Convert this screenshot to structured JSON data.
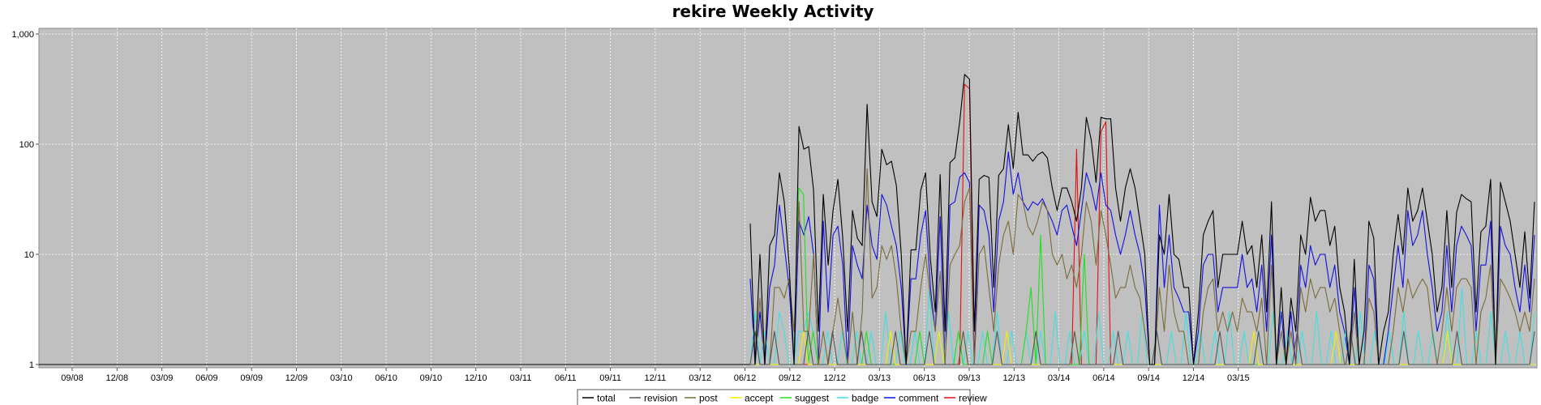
{
  "chart_data": {
    "type": "line",
    "title": "rekire Weekly Activity",
    "xlabel": "",
    "ylabel": "",
    "y_scale": "log",
    "ylim": [
      1,
      1000
    ],
    "y_ticks": [
      {
        "value": 1,
        "label": "1"
      },
      {
        "value": 10,
        "label": "10"
      },
      {
        "value": 100,
        "label": "100"
      },
      {
        "value": 1000,
        "label": "1,000"
      }
    ],
    "x_ticks": [
      "09/08",
      "12/08",
      "03/09",
      "06/09",
      "09/09",
      "12/09",
      "03/10",
      "06/10",
      "09/10",
      "12/10",
      "03/11",
      "06/11",
      "09/11",
      "12/11",
      "03/12",
      "06/12",
      "09/12",
      "12/12",
      "03/13",
      "06/13",
      "09/13",
      "12/13",
      "03/14",
      "06/14",
      "09/14",
      "12/14",
      "03/15"
    ],
    "grid": true,
    "legend_position": "bottom",
    "plot_background": "#c0c0c0",
    "series": [
      {
        "name": "total",
        "color": "#000000",
        "values": [
          19,
          1,
          10,
          1,
          12,
          15,
          55,
          30,
          8,
          1,
          145,
          90,
          95,
          38,
          2,
          35,
          8,
          25,
          48,
          14,
          2,
          25,
          14,
          12,
          230,
          30,
          22,
          90,
          65,
          70,
          42,
          10,
          1,
          11,
          11,
          38,
          55,
          9,
          3,
          53,
          2,
          68,
          75,
          160,
          430,
          390,
          2,
          48,
          52,
          50,
          5,
          52,
          60,
          150,
          60,
          195,
          80,
          80,
          70,
          80,
          85,
          75,
          40,
          25,
          40,
          40,
          30,
          20,
          40,
          175,
          110,
          45,
          175,
          170,
          170,
          40,
          20,
          40,
          60,
          40,
          20,
          10,
          1,
          1,
          15,
          10,
          35,
          10,
          9,
          5,
          5,
          1,
          3,
          15,
          20,
          25,
          5,
          10,
          10,
          10,
          10,
          20,
          10,
          12,
          5,
          15,
          3,
          30,
          1,
          5,
          1,
          4,
          2,
          15,
          10,
          33,
          20,
          25,
          25,
          12,
          18,
          5,
          3,
          1,
          9,
          1,
          2,
          20,
          14,
          1,
          2,
          3,
          10,
          23,
          10,
          40,
          20,
          25,
          40,
          20,
          10,
          3,
          5,
          25,
          5,
          24,
          35,
          32,
          30,
          3,
          16,
          18,
          48,
          1,
          45,
          30,
          20,
          10,
          5,
          16,
          4,
          30
        ]
      },
      {
        "name": "revision",
        "color": "#555555",
        "values": [
          1,
          2,
          1,
          1,
          1,
          2,
          1,
          1,
          1,
          1,
          1,
          1,
          2,
          1,
          1,
          1,
          1,
          2,
          1,
          1,
          1,
          1,
          1,
          2,
          1,
          1,
          1,
          1,
          1,
          1,
          2,
          1,
          1,
          1,
          1,
          1,
          1,
          2,
          1,
          1,
          1,
          1,
          1,
          1,
          2,
          1,
          1,
          1,
          1,
          1,
          1,
          2,
          1,
          1,
          1,
          1,
          1,
          1,
          1,
          2,
          1,
          1,
          1,
          1,
          1,
          1,
          1,
          2,
          1,
          1,
          1,
          1,
          1,
          1,
          1,
          1,
          2,
          1,
          1,
          1,
          1,
          1,
          1,
          1,
          2,
          1,
          1,
          1,
          1,
          1,
          1,
          1,
          1,
          1,
          1,
          1,
          1,
          2,
          1,
          1,
          1,
          1,
          1,
          1,
          1,
          2,
          1,
          1,
          1,
          1,
          1,
          1,
          1,
          2,
          1,
          1,
          1,
          1,
          1,
          1,
          1,
          1,
          1,
          1,
          2,
          1,
          1,
          1,
          1,
          1,
          1,
          1,
          1,
          1,
          1,
          2,
          1,
          1,
          1,
          1,
          1,
          1,
          1,
          1,
          1,
          1,
          2,
          1,
          1,
          1,
          1,
          1,
          1,
          1,
          1,
          1,
          1,
          1,
          1,
          1,
          1,
          1,
          2
        ]
      },
      {
        "name": "post",
        "color": "#7a6a3a",
        "values": [
          1,
          1,
          4,
          1,
          1,
          5,
          5,
          4,
          6,
          2,
          30,
          2,
          2,
          10,
          1,
          2,
          1,
          2,
          4,
          2,
          1,
          3,
          1,
          3,
          60,
          4,
          5,
          12,
          9,
          12,
          6,
          2,
          1,
          2,
          2,
          5,
          10,
          4,
          2,
          7,
          1,
          8,
          10,
          12,
          30,
          40,
          1,
          10,
          12,
          5,
          2,
          8,
          15,
          20,
          10,
          35,
          30,
          18,
          15,
          20,
          30,
          25,
          10,
          8,
          10,
          6,
          8,
          5,
          10,
          30,
          20,
          8,
          25,
          15,
          8,
          4,
          5,
          5,
          8,
          5,
          4,
          2,
          1,
          1,
          5,
          2,
          8,
          3,
          2,
          2,
          1,
          1,
          1,
          3,
          5,
          6,
          2,
          3,
          2,
          3,
          2,
          4,
          3,
          3,
          2,
          4,
          1,
          8,
          1,
          2,
          1,
          2,
          1,
          5,
          3,
          6,
          4,
          5,
          5,
          3,
          4,
          2,
          1,
          1,
          3,
          1,
          1,
          4,
          3,
          1,
          1,
          1,
          2,
          5,
          3,
          6,
          4,
          5,
          6,
          5,
          2,
          1,
          2,
          5,
          2,
          5,
          6,
          6,
          5,
          1,
          3,
          4,
          8,
          1,
          6,
          5,
          4,
          3,
          2,
          3,
          2,
          6
        ]
      },
      {
        "name": "accept",
        "color": "#f0f000",
        "values": [
          1,
          1,
          1,
          1,
          1,
          1,
          1,
          1,
          1,
          1,
          1,
          2,
          1,
          1,
          1,
          1,
          1,
          1,
          1,
          1,
          1,
          1,
          1,
          1,
          1,
          1,
          1,
          1,
          1,
          2,
          1,
          1,
          1,
          1,
          1,
          1,
          1,
          1,
          1,
          2,
          1,
          1,
          1,
          1,
          2,
          1,
          1,
          1,
          1,
          1,
          1,
          1,
          1,
          2,
          1,
          1,
          1,
          1,
          1,
          1,
          1,
          1,
          1,
          1,
          1,
          1,
          1,
          2,
          1,
          1,
          1,
          1,
          1,
          1,
          1,
          1,
          1,
          1,
          1,
          1,
          1,
          1,
          1,
          1,
          1,
          1,
          1,
          1,
          1,
          1,
          1,
          1,
          1,
          1,
          1,
          1,
          1,
          1,
          1,
          1,
          1,
          1,
          1,
          1,
          2,
          1,
          1,
          1,
          1,
          1,
          1,
          1,
          1,
          1,
          1,
          1,
          1,
          1,
          1,
          1,
          1,
          2,
          1,
          1,
          1,
          1,
          1,
          1,
          1,
          1,
          1,
          1,
          1,
          1,
          1,
          1,
          1,
          1,
          1,
          1,
          1,
          1,
          1,
          1,
          2,
          1,
          1,
          1,
          1,
          1,
          1,
          1,
          1,
          1,
          1,
          1,
          1,
          1,
          1,
          1,
          1,
          1,
          1
        ]
      },
      {
        "name": "suggest",
        "color": "#20e020",
        "values": [
          1,
          1,
          1,
          1,
          1,
          1,
          1,
          1,
          1,
          1,
          40,
          35,
          1,
          2,
          1,
          1,
          1,
          1,
          1,
          1,
          1,
          1,
          1,
          1,
          2,
          1,
          1,
          1,
          1,
          1,
          1,
          1,
          1,
          1,
          1,
          2,
          1,
          1,
          1,
          1,
          1,
          1,
          1,
          2,
          1,
          1,
          1,
          1,
          1,
          2,
          1,
          1,
          1,
          1,
          1,
          1,
          1,
          2,
          5,
          1,
          15,
          1,
          1,
          1,
          1,
          1,
          1,
          1,
          1,
          10,
          1,
          1,
          1,
          1,
          1,
          1,
          1,
          1,
          1,
          1,
          1,
          1,
          1,
          1,
          1,
          1,
          1,
          1,
          1,
          1,
          1,
          1,
          1,
          1,
          1,
          1,
          1,
          1,
          1,
          1,
          1,
          1,
          1,
          1,
          1,
          1,
          1,
          1,
          1,
          1,
          1,
          1,
          1,
          1,
          1,
          1,
          1,
          1,
          1,
          1,
          1,
          1,
          1,
          1,
          1,
          1,
          1,
          1,
          1,
          1,
          1,
          1,
          1,
          1,
          1,
          1,
          1,
          1,
          1,
          1,
          1,
          1,
          1,
          1,
          1,
          1,
          1,
          1,
          1,
          1,
          1,
          1,
          1,
          1,
          1,
          1,
          1,
          1,
          1,
          1,
          1,
          1,
          1
        ]
      },
      {
        "name": "badge",
        "color": "#40e0e0",
        "values": [
          1,
          3,
          1,
          2,
          1,
          1,
          3,
          2,
          1,
          1,
          2,
          2,
          3,
          2,
          1,
          1,
          2,
          1,
          1,
          2,
          1,
          1,
          2,
          1,
          1,
          2,
          1,
          1,
          3,
          1,
          1,
          2,
          1,
          1,
          2,
          1,
          1,
          5,
          1,
          2,
          1,
          3,
          1,
          2,
          1,
          2,
          1,
          1,
          2,
          1,
          1,
          3,
          1,
          1,
          2,
          1,
          1,
          2,
          1,
          1,
          2,
          1,
          1,
          3,
          1,
          1,
          2,
          1,
          1,
          2,
          1,
          1,
          3,
          1,
          1,
          2,
          1,
          1,
          2,
          1,
          1,
          3,
          1,
          1,
          2,
          1,
          1,
          2,
          1,
          1,
          3,
          1,
          1,
          2,
          1,
          1,
          2,
          1,
          1,
          3,
          1,
          1,
          2,
          1,
          1,
          2,
          1,
          1,
          3,
          1,
          1,
          2,
          1,
          1,
          2,
          1,
          1,
          3,
          1,
          1,
          2,
          1,
          1,
          2,
          1,
          1,
          3,
          1,
          1,
          2,
          1,
          1,
          2,
          1,
          1,
          3,
          1,
          1,
          2,
          1,
          1,
          2,
          1,
          1,
          3,
          1,
          1,
          5,
          1,
          1,
          2,
          1,
          1,
          3,
          1,
          1,
          2,
          1,
          1,
          2,
          1,
          1,
          3
        ]
      },
      {
        "name": "comment",
        "color": "#1010e0",
        "values": [
          6,
          1,
          3,
          1,
          5,
          8,
          28,
          12,
          5,
          1,
          20,
          15,
          22,
          10,
          1,
          20,
          3,
          15,
          18,
          8,
          1,
          12,
          8,
          6,
          28,
          12,
          9,
          35,
          28,
          18,
          12,
          5,
          1,
          6,
          6,
          15,
          25,
          5,
          2,
          22,
          1,
          28,
          30,
          50,
          55,
          45,
          1,
          28,
          25,
          15,
          3,
          20,
          30,
          85,
          35,
          55,
          30,
          25,
          30,
          28,
          32,
          25,
          20,
          15,
          25,
          28,
          18,
          12,
          25,
          55,
          40,
          25,
          55,
          28,
          25,
          15,
          10,
          15,
          25,
          15,
          10,
          5,
          1,
          1,
          28,
          5,
          15,
          5,
          4,
          3,
          3,
          1,
          2,
          8,
          10,
          10,
          3,
          5,
          5,
          5,
          5,
          10,
          5,
          6,
          3,
          8,
          2,
          15,
          1,
          3,
          1,
          3,
          1,
          8,
          5,
          12,
          8,
          10,
          10,
          5,
          8,
          3,
          2,
          1,
          5,
          1,
          1,
          8,
          6,
          1,
          1,
          2,
          5,
          12,
          5,
          25,
          12,
          15,
          25,
          10,
          5,
          2,
          3,
          12,
          3,
          12,
          18,
          15,
          12,
          2,
          8,
          8,
          20,
          1,
          18,
          12,
          10,
          5,
          3,
          8,
          3,
          15
        ]
      },
      {
        "name": "review",
        "color": "#e01010",
        "values": [
          1,
          1,
          1,
          1,
          1,
          1,
          1,
          1,
          1,
          1,
          1,
          1,
          1,
          1,
          1,
          1,
          1,
          1,
          1,
          1,
          1,
          1,
          1,
          1,
          1,
          1,
          1,
          1,
          1,
          1,
          1,
          1,
          1,
          1,
          1,
          1,
          1,
          1,
          1,
          1,
          1,
          1,
          1,
          1,
          350,
          320,
          1,
          1,
          1,
          1,
          1,
          1,
          1,
          1,
          1,
          1,
          1,
          1,
          1,
          1,
          1,
          1,
          1,
          1,
          1,
          1,
          1,
          90,
          1,
          1,
          1,
          1,
          130,
          160,
          1,
          1,
          1,
          1,
          1,
          1,
          1,
          1,
          1,
          1,
          1,
          1,
          1,
          1,
          1,
          1,
          1,
          1,
          1,
          1,
          1,
          1,
          1,
          1,
          1,
          1,
          1,
          1,
          1,
          1,
          1,
          1,
          1,
          1,
          1,
          1,
          1,
          1,
          1,
          1,
          1,
          1,
          1,
          1,
          1,
          1,
          1,
          1,
          1,
          1,
          1,
          1,
          1,
          1,
          1,
          1,
          1,
          1,
          1,
          1,
          1,
          1,
          1,
          1,
          1,
          1,
          1,
          1,
          1,
          1,
          1,
          1,
          1,
          1,
          1,
          1,
          1,
          1,
          1,
          1,
          1,
          1,
          1,
          1,
          1,
          1,
          1,
          1
        ]
      }
    ]
  }
}
